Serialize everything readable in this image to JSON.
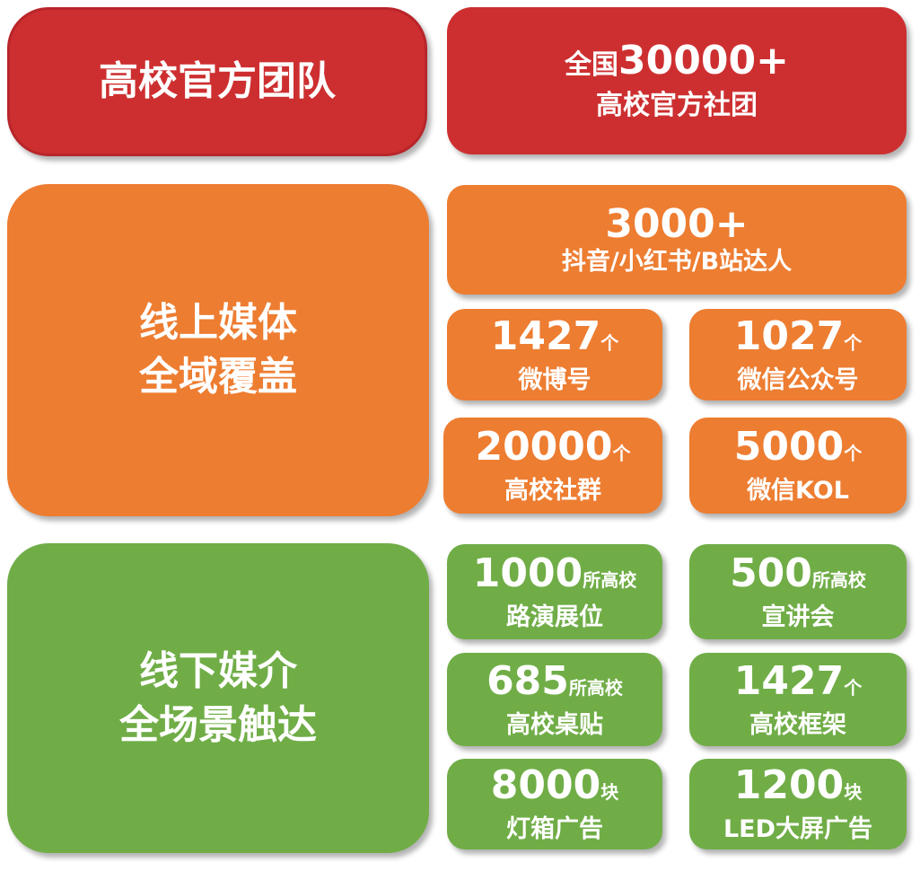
{
  "colors": {
    "red": "#cd2f30",
    "orange": "#ed7d31",
    "green": "#70ad47"
  },
  "team": {
    "title": "高校官方团队",
    "prefix": "全国",
    "number": "30000+",
    "label": "高校官方社团"
  },
  "online": {
    "title_line1": "线上媒体",
    "title_line2": "全域覆盖",
    "top": {
      "number": "3000+",
      "label": "抖音/小红书/B站达人"
    },
    "cards": [
      {
        "number": "1427",
        "unit": "个",
        "label": "微博号"
      },
      {
        "number": "1027",
        "unit": "个",
        "label": "微信公众号"
      },
      {
        "number": "20000",
        "unit": "个",
        "label": "高校社群"
      },
      {
        "number": "5000",
        "unit": "个",
        "label": "微信KOL"
      }
    ]
  },
  "offline": {
    "title_line1": "线下媒介",
    "title_line2": "全场景触达",
    "cards": [
      {
        "number": "1000",
        "unit": "所高校",
        "label": "路演展位"
      },
      {
        "number": "500",
        "unit": "所高校",
        "label": "宣讲会"
      },
      {
        "number": "685",
        "unit": "所高校",
        "label": "高校桌贴"
      },
      {
        "number": "1427",
        "unit": "个",
        "label": "高校框架"
      },
      {
        "number": "8000",
        "unit": "块",
        "label": "灯箱广告"
      },
      {
        "number": "1200",
        "unit": "块",
        "label": "LED大屏广告"
      }
    ]
  }
}
